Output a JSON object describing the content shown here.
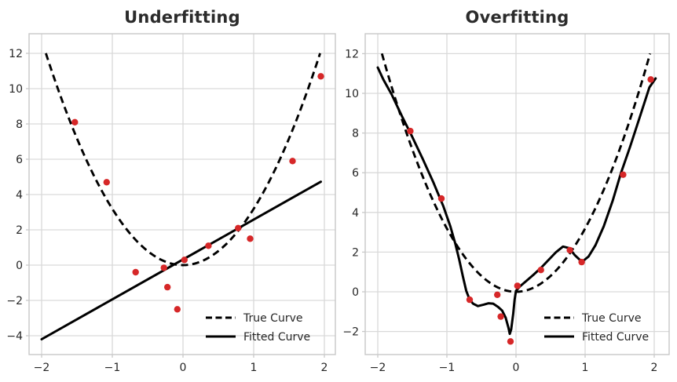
{
  "style": {
    "background": "#ffffff",
    "curve_color": "#000000",
    "point_color": "#d62728",
    "grid_color": "#d9d9d9",
    "spine_color": "#c8c8c8",
    "text_color": "#262626",
    "title_color": "#2b2b2b"
  },
  "chart_data": [
    {
      "type": "scatter",
      "title": "Underfitting",
      "xlabel": "",
      "ylabel": "",
      "xlim": [
        -2.18,
        2.16
      ],
      "ylim": [
        -5.05,
        13.1
      ],
      "x_ticks": [
        -2,
        -1,
        0,
        1,
        2
      ],
      "y_ticks": [
        -4,
        -2,
        0,
        2,
        4,
        6,
        8,
        10,
        12
      ],
      "grid": true,
      "legend_position": "lower right",
      "legend": {
        "items": [
          {
            "label": "True Curve",
            "style": "dashed"
          },
          {
            "label": "Fitted Curve",
            "style": "solid"
          }
        ]
      },
      "scatter": {
        "name": "noisy data points",
        "color": "#d62728",
        "points": [
          [
            -1.53,
            8.1
          ],
          [
            -1.08,
            4.7
          ],
          [
            -0.67,
            -0.4
          ],
          [
            -0.27,
            -0.15
          ],
          [
            -0.22,
            -1.25
          ],
          [
            -0.08,
            -2.5
          ],
          [
            0.02,
            0.3
          ],
          [
            0.36,
            1.1
          ],
          [
            0.78,
            2.1
          ],
          [
            0.95,
            1.5
          ],
          [
            1.55,
            5.9
          ],
          [
            1.95,
            10.7
          ]
        ]
      },
      "true_curve": {
        "label": "True Curve",
        "style": "dashed",
        "equation": "y = 3.19x^2",
        "coefficient": 3.19,
        "x_range": [
          -1.94,
          1.94
        ]
      },
      "fitted_curve": {
        "label": "Fitted Curve",
        "style": "solid",
        "equation": "y = 2.26x + 0.32",
        "slope": 2.26,
        "intercept": 0.32,
        "x_range": [
          -2.0,
          1.95
        ]
      }
    },
    {
      "type": "scatter",
      "title": "Overfitting",
      "xlabel": "",
      "ylabel": "",
      "xlim": [
        -2.18,
        2.22
      ],
      "ylim": [
        -3.16,
        13.0
      ],
      "x_ticks": [
        -2,
        -1,
        0,
        1,
        2
      ],
      "y_ticks": [
        -2,
        0,
        2,
        4,
        6,
        8,
        10,
        12
      ],
      "grid": true,
      "legend_position": "lower right",
      "legend": {
        "items": [
          {
            "label": "True Curve",
            "style": "dashed"
          },
          {
            "label": "Fitted Curve",
            "style": "solid"
          }
        ]
      },
      "scatter": {
        "name": "noisy data points",
        "color": "#d62728",
        "points": [
          [
            -1.53,
            8.1
          ],
          [
            -1.08,
            4.7
          ],
          [
            -0.67,
            -0.4
          ],
          [
            -0.27,
            -0.15
          ],
          [
            -0.22,
            -1.25
          ],
          [
            -0.08,
            -2.5
          ],
          [
            0.02,
            0.3
          ],
          [
            0.36,
            1.1
          ],
          [
            0.78,
            2.1
          ],
          [
            0.95,
            1.5
          ],
          [
            1.55,
            5.9
          ],
          [
            1.95,
            10.7
          ]
        ]
      },
      "true_curve": {
        "label": "True Curve",
        "style": "dashed",
        "equation": "y = 3.19x^2",
        "coefficient": 3.19,
        "x_range": [
          -1.94,
          1.94
        ]
      },
      "fitted_curve": {
        "label": "Fitted Curve",
        "style": "solid",
        "points": [
          [
            -2.0,
            11.3
          ],
          [
            -1.92,
            10.7
          ],
          [
            -1.8,
            9.95
          ],
          [
            -1.65,
            8.85
          ],
          [
            -1.5,
            7.8
          ],
          [
            -1.35,
            6.7
          ],
          [
            -1.2,
            5.55
          ],
          [
            -1.05,
            4.3
          ],
          [
            -0.95,
            3.3
          ],
          [
            -0.88,
            2.45
          ],
          [
            -0.82,
            1.6
          ],
          [
            -0.77,
            0.8
          ],
          [
            -0.72,
            0.05
          ],
          [
            -0.67,
            -0.4
          ],
          [
            -0.62,
            -0.6
          ],
          [
            -0.55,
            -0.72
          ],
          [
            -0.47,
            -0.65
          ],
          [
            -0.4,
            -0.58
          ],
          [
            -0.33,
            -0.6
          ],
          [
            -0.26,
            -0.76
          ],
          [
            -0.2,
            -0.95
          ],
          [
            -0.15,
            -1.3
          ],
          [
            -0.11,
            -1.8
          ],
          [
            -0.09,
            -2.12
          ],
          [
            -0.07,
            -1.9
          ],
          [
            -0.04,
            -1.1
          ],
          [
            -0.02,
            -0.4
          ],
          [
            0.0,
            0.05
          ],
          [
            0.06,
            0.28
          ],
          [
            0.15,
            0.55
          ],
          [
            0.25,
            0.85
          ],
          [
            0.36,
            1.2
          ],
          [
            0.47,
            1.6
          ],
          [
            0.58,
            2.0
          ],
          [
            0.68,
            2.28
          ],
          [
            0.77,
            2.2
          ],
          [
            0.85,
            1.85
          ],
          [
            0.92,
            1.62
          ],
          [
            0.97,
            1.55
          ],
          [
            1.05,
            1.78
          ],
          [
            1.15,
            2.35
          ],
          [
            1.27,
            3.3
          ],
          [
            1.4,
            4.6
          ],
          [
            1.52,
            6.0
          ],
          [
            1.65,
            7.3
          ],
          [
            1.8,
            8.9
          ],
          [
            1.93,
            10.3
          ],
          [
            2.02,
            10.75
          ]
        ]
      }
    }
  ]
}
